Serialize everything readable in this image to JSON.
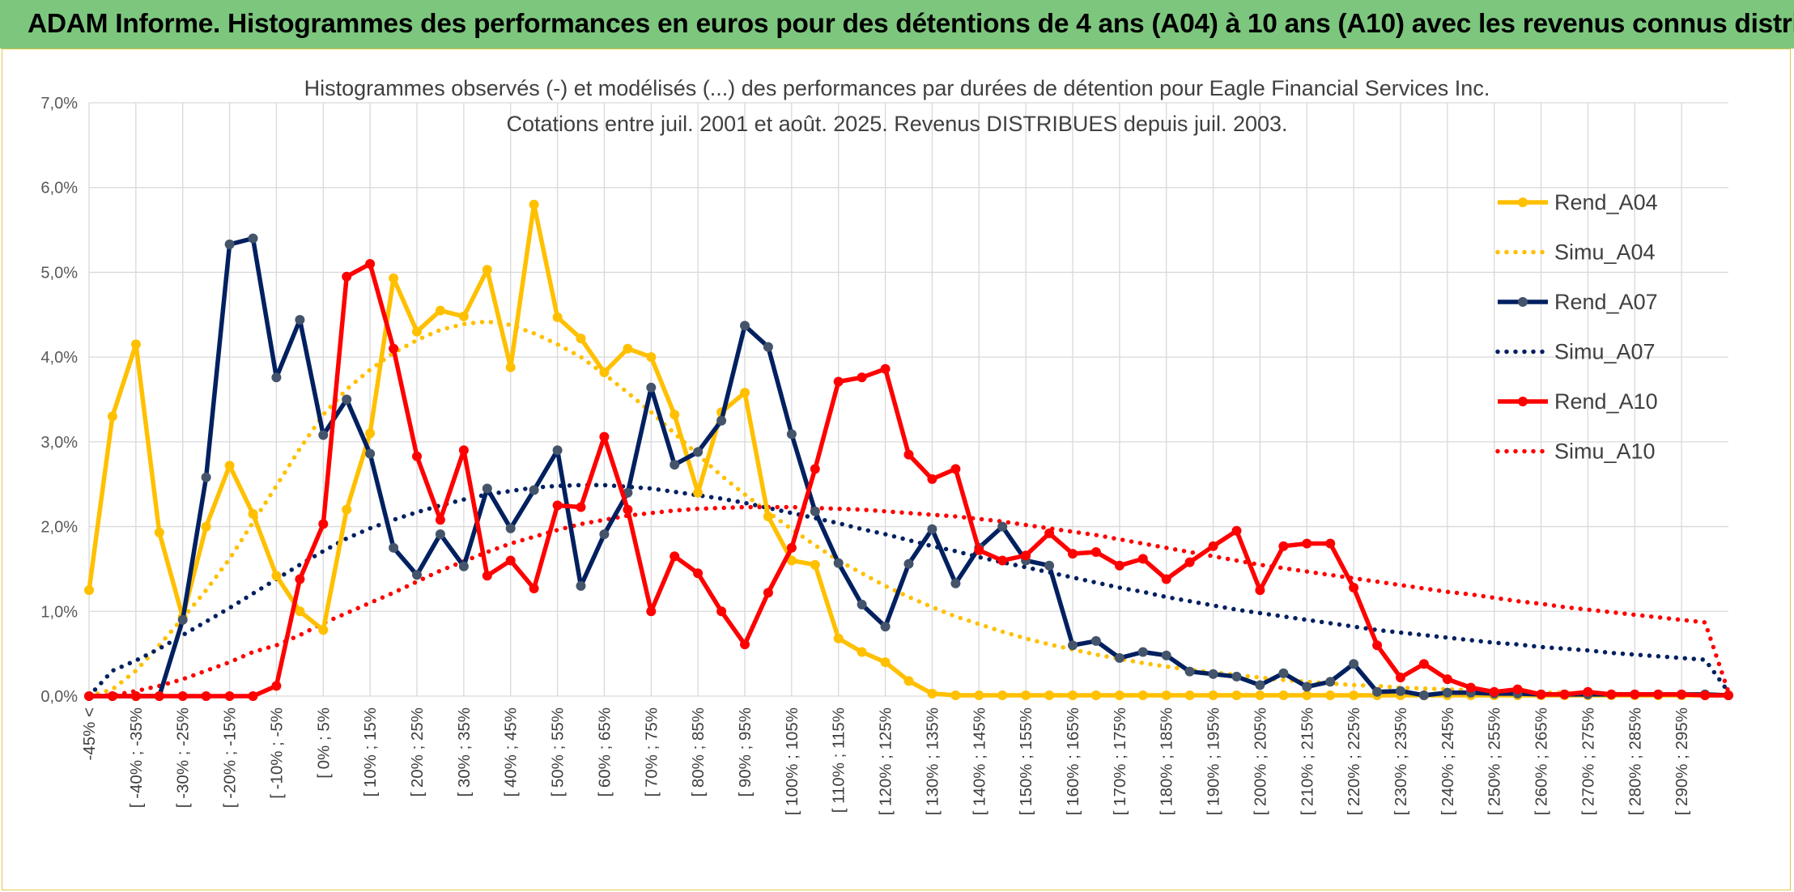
{
  "banner": {
    "title": "ADAM Informe. Histogrammes des performances en euros pour des détentions de 4 ans (A04) à 10 ans (A10) avec les revenus connus distribués"
  },
  "colors": {
    "banner_bg": "#7dc67e",
    "A04": "#ffc000",
    "A07": "#002060",
    "A10": "#ff0000",
    "grid": "#d9d9d9"
  },
  "chart_data": {
    "type": "line",
    "title": "Histogrammes observés (-) et modélisés (...) des performances par durées de détention pour Eagle Financial Services Inc.",
    "subtitle": "Cotations entre juil. 2001 et août. 2025. Revenus DISTRIBUES depuis juil. 2003.",
    "ylim": [
      0,
      7
    ],
    "y_ticks": [
      "0,0%",
      "1,0%",
      "2,0%",
      "3,0%",
      "4,0%",
      "5,0%",
      "6,0%",
      "7,0%"
    ],
    "x_ticks": [
      "-45% <",
      "[ -40% ; -35%",
      "[ -30% ; -25%",
      "[ -20% ; -15%",
      "[ -10% ; -5%",
      "[ 0% ; 5%",
      "[ 10% ; 15%",
      "[ 20% ; 25%",
      "[ 30% ; 35%",
      "[ 40% ; 45%",
      "[ 50% ; 55%",
      "[ 60% ; 65%",
      "[ 70% ; 75%",
      "[ 80% ; 85%",
      "[ 90% ; 95%",
      "[ 100% ; 105%",
      "[ 110% ; 115%",
      "[ 120% ; 125%",
      "[ 130% ; 135%",
      "[ 140% ; 145%",
      "[ 150% ; 155%",
      "[ 160% ; 165%",
      "[ 170% ; 175%",
      "[ 180% ; 185%",
      "[ 190% ; 195%",
      "[ 200% ; 205%",
      "[ 210% ; 215%",
      "[ 220% ; 225%",
      "[ 230% ; 235%",
      "[ 240% ; 245%",
      "[ 250% ; 255%",
      "[ 260% ; 265%",
      "[ 270% ; 275%",
      "[ 280% ; 285%",
      "[ 290% ; 295%"
    ],
    "grid": true,
    "legend_position": "right",
    "series": [
      {
        "name": "Rend_A04",
        "style": "solid",
        "color": "#ffc000",
        "values": [
          1.25,
          3.3,
          4.15,
          1.93,
          0.93,
          2.0,
          2.72,
          2.15,
          1.42,
          1.0,
          0.78,
          2.2,
          3.1,
          4.93,
          4.3,
          4.55,
          4.48,
          5.03,
          3.88,
          5.8,
          4.47,
          4.22,
          3.82,
          4.1,
          4.0,
          3.32,
          2.4,
          3.35,
          3.58,
          2.12,
          1.6,
          1.55,
          0.68,
          0.52,
          0.4,
          0.18,
          0.03,
          0.01,
          0.01,
          0.01,
          0.01,
          0.01,
          0.01,
          0.01,
          0.01,
          0.01,
          0.01,
          0.01,
          0.01,
          0.01,
          0.01,
          0.01,
          0.01,
          0.01,
          0.01,
          0.01,
          0.01,
          0.01,
          0.01,
          0.01,
          0.01,
          0.01,
          0.01,
          0.01,
          0.01,
          0.01,
          0.01,
          0.01,
          0.01,
          0.01,
          0.01
        ]
      },
      {
        "name": "Simu_A04",
        "style": "dotted",
        "color": "#ffc000",
        "values": [
          0.0,
          0.08,
          0.3,
          0.6,
          0.92,
          1.25,
          1.62,
          2.05,
          2.48,
          2.92,
          3.32,
          3.62,
          3.85,
          4.05,
          4.2,
          4.32,
          4.39,
          4.42,
          4.38,
          4.28,
          4.15,
          4.0,
          3.8,
          3.58,
          3.35,
          3.1,
          2.85,
          2.6,
          2.38,
          2.17,
          1.97,
          1.78,
          1.6,
          1.45,
          1.3,
          1.17,
          1.05,
          0.94,
          0.85,
          0.76,
          0.68,
          0.61,
          0.55,
          0.49,
          0.44,
          0.39,
          0.35,
          0.31,
          0.28,
          0.25,
          0.22,
          0.19,
          0.17,
          0.15,
          0.13,
          0.12,
          0.1,
          0.09,
          0.08,
          0.07,
          0.06,
          0.05,
          0.04,
          0.04,
          0.03,
          0.03,
          0.02,
          0.02,
          0.02,
          0.02,
          0.01
        ]
      },
      {
        "name": "Rend_A07",
        "style": "solid",
        "color": "#002060",
        "values": [
          0.0,
          0.0,
          0.0,
          0.0,
          0.9,
          2.58,
          5.33,
          5.4,
          3.76,
          4.44,
          3.08,
          3.5,
          2.86,
          1.75,
          1.43,
          1.91,
          1.53,
          2.45,
          1.98,
          2.43,
          2.9,
          1.3,
          1.91,
          2.4,
          3.64,
          2.73,
          2.88,
          3.25,
          4.37,
          4.12,
          3.09,
          2.18,
          1.57,
          1.08,
          0.82,
          1.56,
          1.97,
          1.33,
          1.75,
          2.0,
          1.6,
          1.54,
          0.6,
          0.65,
          0.45,
          0.52,
          0.48,
          0.29,
          0.26,
          0.23,
          0.13,
          0.27,
          0.11,
          0.17,
          0.38,
          0.05,
          0.06,
          0.01,
          0.04,
          0.04,
          0.03,
          0.03,
          0.02,
          0.02,
          0.02,
          0.02,
          0.02,
          0.02,
          0.02,
          0.02,
          0.01
        ]
      },
      {
        "name": "Simu_A07",
        "style": "dotted",
        "color": "#002060",
        "values": [
          0.0,
          0.3,
          0.42,
          0.56,
          0.72,
          0.88,
          1.04,
          1.21,
          1.38,
          1.55,
          1.71,
          1.86,
          1.98,
          2.08,
          2.17,
          2.25,
          2.32,
          2.38,
          2.42,
          2.46,
          2.48,
          2.49,
          2.49,
          2.47,
          2.45,
          2.41,
          2.37,
          2.33,
          2.28,
          2.22,
          2.16,
          2.1,
          2.04,
          1.97,
          1.91,
          1.84,
          1.77,
          1.71,
          1.64,
          1.58,
          1.52,
          1.46,
          1.4,
          1.34,
          1.28,
          1.23,
          1.17,
          1.12,
          1.07,
          1.02,
          0.98,
          0.94,
          0.9,
          0.86,
          0.82,
          0.78,
          0.75,
          0.72,
          0.69,
          0.66,
          0.63,
          0.61,
          0.58,
          0.56,
          0.54,
          0.51,
          0.49,
          0.47,
          0.45,
          0.43,
          0.05
        ]
      },
      {
        "name": "Rend_A10",
        "style": "solid",
        "color": "#ff0000",
        "values": [
          0.0,
          0.0,
          0.0,
          0.0,
          0.0,
          0.0,
          0.0,
          0.0,
          0.12,
          1.38,
          2.03,
          4.95,
          5.1,
          4.1,
          2.83,
          2.08,
          2.9,
          1.42,
          1.6,
          1.27,
          2.25,
          2.23,
          3.06,
          2.2,
          1.0,
          1.65,
          1.45,
          1.0,
          0.61,
          1.22,
          1.75,
          2.68,
          3.71,
          3.76,
          3.86,
          2.85,
          2.56,
          2.68,
          1.72,
          1.6,
          1.66,
          1.92,
          1.68,
          1.7,
          1.54,
          1.62,
          1.38,
          1.58,
          1.77,
          1.95,
          1.25,
          1.77,
          1.8,
          1.8,
          1.28,
          0.6,
          0.22,
          0.38,
          0.2,
          0.1,
          0.05,
          0.08,
          0.02,
          0.02,
          0.05,
          0.02,
          0.02,
          0.02,
          0.02,
          0.01,
          0.01
        ]
      },
      {
        "name": "Simu_A10",
        "style": "dotted",
        "color": "#ff0000",
        "values": [
          0.0,
          0.01,
          0.06,
          0.12,
          0.2,
          0.3,
          0.4,
          0.52,
          0.6,
          0.72,
          0.86,
          0.98,
          1.1,
          1.22,
          1.35,
          1.48,
          1.59,
          1.7,
          1.8,
          1.88,
          1.96,
          2.03,
          2.08,
          2.13,
          2.16,
          2.19,
          2.21,
          2.22,
          2.23,
          2.23,
          2.23,
          2.22,
          2.21,
          2.2,
          2.18,
          2.16,
          2.14,
          2.12,
          2.09,
          2.06,
          2.02,
          1.98,
          1.94,
          1.9,
          1.85,
          1.8,
          1.75,
          1.7,
          1.65,
          1.6,
          1.55,
          1.51,
          1.47,
          1.43,
          1.39,
          1.35,
          1.31,
          1.27,
          1.23,
          1.2,
          1.16,
          1.12,
          1.09,
          1.05,
          1.02,
          0.99,
          0.96,
          0.93,
          0.9,
          0.87,
          0.05
        ]
      }
    ]
  }
}
